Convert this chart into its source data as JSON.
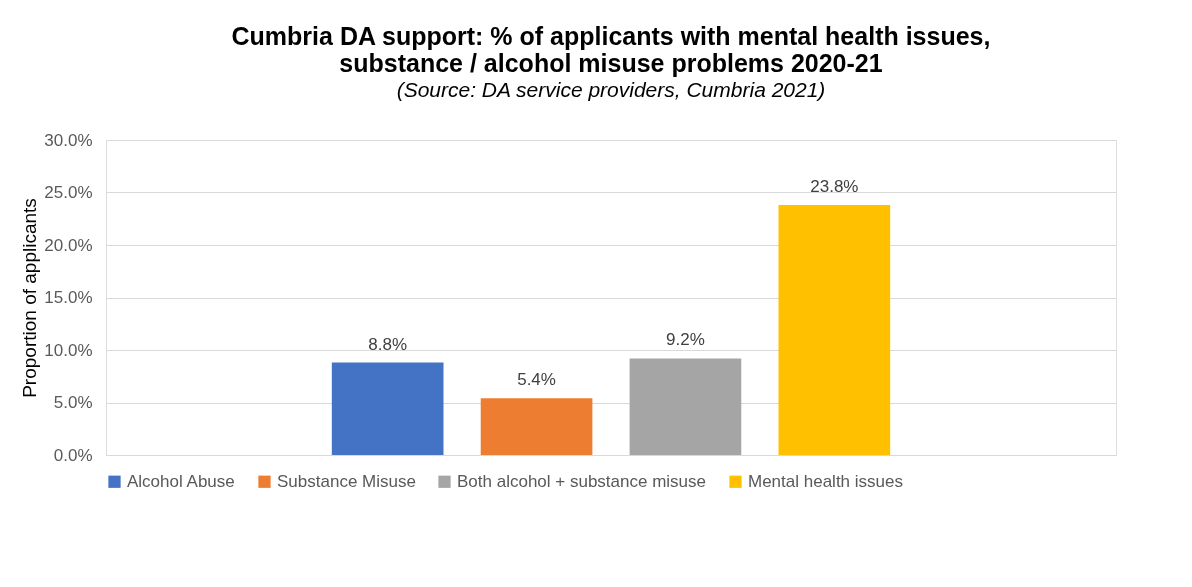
{
  "chart_data": {
    "type": "bar",
    "title": [
      "Cumbria DA support: % of applicants with mental health issues,",
      "substance / alcohol misuse problems 2020-21"
    ],
    "subtitle": "(Source: DA service providers, Cumbria 2021)",
    "ylabel": "Proportion of applicants",
    "categories": [
      null
    ],
    "series": [
      {
        "name": "Alcohol Abuse",
        "color": "#4472c4",
        "values": [
          8.8
        ],
        "value_labels": [
          "8.8%"
        ]
      },
      {
        "name": "Substance Misuse",
        "color": "#ed7d31",
        "values": [
          5.4
        ],
        "value_labels": [
          "5.4%"
        ]
      },
      {
        "name": "Both alcohol + substance misuse",
        "color": "#a5a5a5",
        "values": [
          9.2
        ],
        "value_labels": [
          "9.2%"
        ]
      },
      {
        "name": "Mental health issues",
        "color": "#ffc000",
        "values": [
          23.8
        ],
        "value_labels": [
          "23.8%"
        ]
      }
    ],
    "ylim": [
      0,
      30
    ],
    "yticks": [
      {
        "value": 0,
        "label": "0.0%"
      },
      {
        "value": 5,
        "label": "5.0%"
      },
      {
        "value": 10,
        "label": "10.0%"
      },
      {
        "value": 15,
        "label": "15.0%"
      },
      {
        "value": 20,
        "label": "20.0%"
      },
      {
        "value": 25,
        "label": "25.0%"
      },
      {
        "value": 30,
        "label": "30.0%"
      }
    ],
    "grid": "y",
    "legend": "bottom"
  }
}
